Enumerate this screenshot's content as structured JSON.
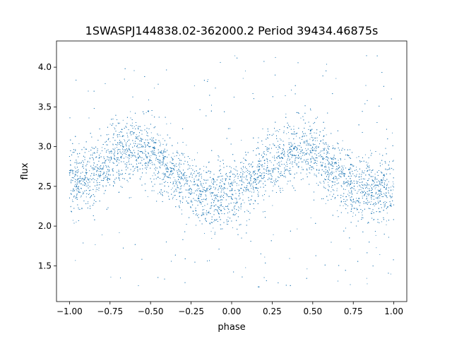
{
  "chart_data": {
    "type": "scatter",
    "title": "1SWASPJ144838.02-362000.2 Period 39434.46875s",
    "xlabel": "phase",
    "ylabel": "flux",
    "xlim": [
      -1.08,
      1.08
    ],
    "ylim": [
      1.05,
      4.33
    ],
    "x_ticks": [
      -1.0,
      -0.75,
      -0.5,
      -0.25,
      0.0,
      0.25,
      0.5,
      0.75,
      1.0
    ],
    "x_tick_labels": [
      "−1.00",
      "−0.75",
      "−0.50",
      "−0.25",
      "0.00",
      "0.25",
      "0.50",
      "0.75",
      "1.00"
    ],
    "y_ticks": [
      1.5,
      2.0,
      2.5,
      3.0,
      3.5,
      4.0
    ],
    "y_tick_labels": [
      "1.5",
      "2.0",
      "2.5",
      "3.0",
      "3.5",
      "4.0"
    ],
    "grid": false,
    "legend": "none",
    "marker_color": "#1f77b4",
    "point_count": 9000,
    "phase_range": [
      -1.0,
      1.0
    ],
    "trend": {
      "description": "phase-folded light curve, two cycles shown",
      "phase": [
        -1.0,
        -0.9,
        -0.8,
        -0.7,
        -0.6,
        -0.5,
        -0.4,
        -0.3,
        -0.2,
        -0.1,
        0.0,
        0.1,
        0.2,
        0.3,
        0.4,
        0.5,
        0.6,
        0.7,
        0.8,
        0.9,
        1.0
      ],
      "flux": [
        2.52,
        2.62,
        2.76,
        2.9,
        2.98,
        2.92,
        2.74,
        2.56,
        2.44,
        2.38,
        2.42,
        2.55,
        2.72,
        2.88,
        2.98,
        2.93,
        2.74,
        2.56,
        2.46,
        2.42,
        2.44
      ],
      "scatter_sigma": 0.2,
      "outlier_fraction": 0.07,
      "outlier_flux_range": [
        1.2,
        4.15
      ]
    }
  }
}
